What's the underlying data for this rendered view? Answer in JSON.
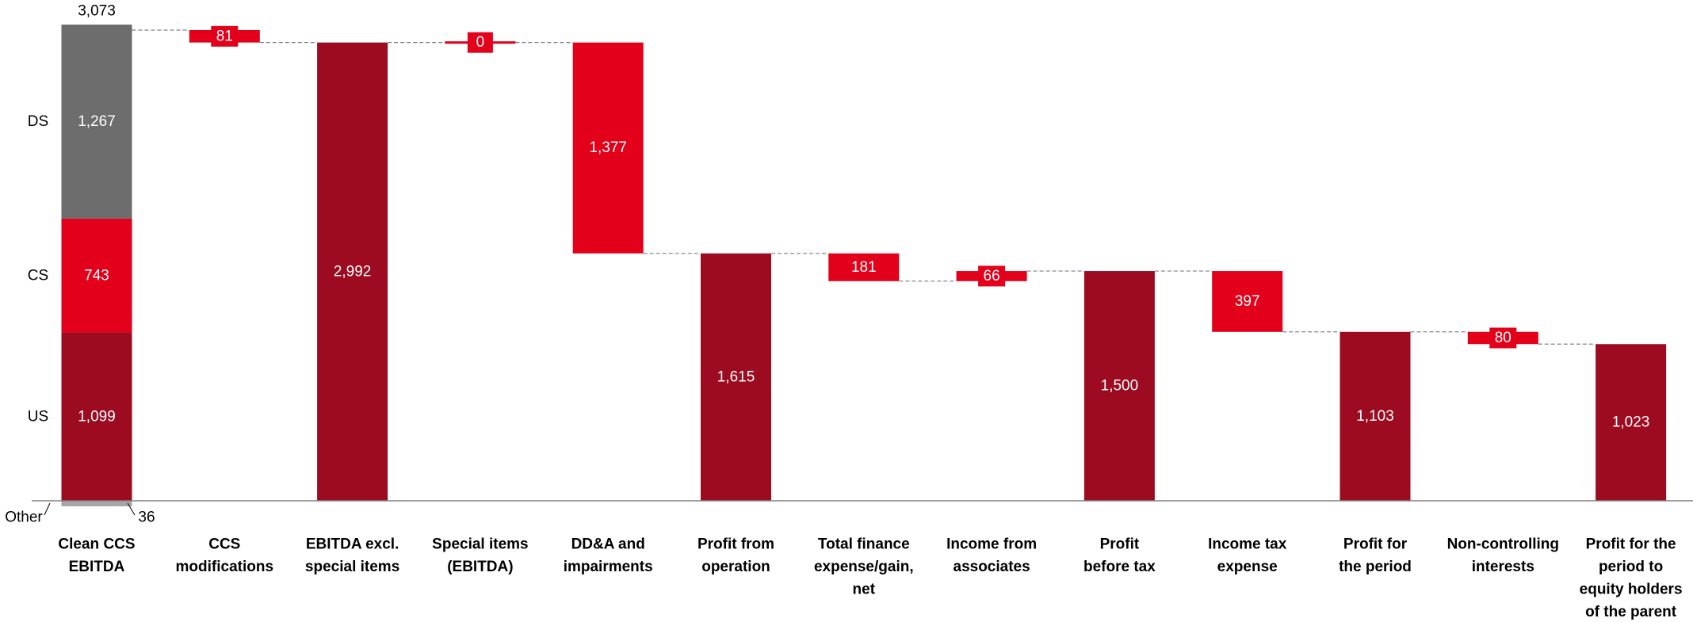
{
  "chart_data": {
    "type": "bar",
    "subtype": "waterfall",
    "categories": [
      [
        "Clean CCS",
        "EBITDA"
      ],
      [
        "CCS",
        "modifications"
      ],
      [
        "EBITDA excl.",
        "special items"
      ],
      [
        "Special items",
        "(EBITDA)"
      ],
      [
        "DD&A and",
        "impairments"
      ],
      [
        "Profit from",
        "operation"
      ],
      [
        "Total finance",
        "expense/gain,",
        "net"
      ],
      [
        "Income from",
        "associates"
      ],
      [
        "Profit",
        "before tax"
      ],
      [
        "Income tax",
        "expense"
      ],
      [
        "Profit for",
        "the period"
      ],
      [
        "Non-controlling",
        "interests"
      ],
      [
        "Profit for the",
        "period to",
        "equity holders",
        "of the parent"
      ]
    ],
    "bars": [
      {
        "kind": "stack",
        "total": 3073,
        "total_label": "3,073",
        "segments": [
          {
            "name": "Other",
            "value": 36,
            "label": "36",
            "color": "#a6a6a6"
          },
          {
            "name": "US",
            "value": 1099,
            "label": "1,099",
            "color": "#9c0b20"
          },
          {
            "name": "CS",
            "value": 743,
            "label": "743",
            "color": "#e2001a"
          },
          {
            "name": "DS",
            "value": 1267,
            "label": "1,267",
            "color": "#6d6d6d"
          }
        ]
      },
      {
        "kind": "float",
        "from": 3073,
        "to": 2992,
        "label": "81",
        "color": "#e2001a"
      },
      {
        "kind": "total",
        "value": 2992,
        "label": "2,992",
        "color": "#9c0b20"
      },
      {
        "kind": "float",
        "from": 2992,
        "to": 2992,
        "label": "0",
        "color": "#e2001a"
      },
      {
        "kind": "float",
        "from": 2992,
        "to": 1615,
        "label": "1,377",
        "color": "#e2001a"
      },
      {
        "kind": "total",
        "value": 1615,
        "label": "1,615",
        "color": "#9c0b20"
      },
      {
        "kind": "float",
        "from": 1615,
        "to": 1434,
        "label": "181",
        "color": "#e2001a"
      },
      {
        "kind": "float",
        "from": 1434,
        "to": 1500,
        "label": "66",
        "color": "#e2001a"
      },
      {
        "kind": "total",
        "value": 1500,
        "label": "1,500",
        "color": "#9c0b20"
      },
      {
        "kind": "float",
        "from": 1500,
        "to": 1103,
        "label": "397",
        "color": "#e2001a"
      },
      {
        "kind": "total",
        "value": 1103,
        "label": "1,103",
        "color": "#9c0b20"
      },
      {
        "kind": "float",
        "from": 1103,
        "to": 1023,
        "label": "80",
        "color": "#e2001a"
      },
      {
        "kind": "total",
        "value": 1023,
        "label": "1,023",
        "color": "#9c0b20"
      }
    ],
    "ylim": [
      -36,
      3073
    ],
    "grid": false,
    "legend": "none"
  }
}
